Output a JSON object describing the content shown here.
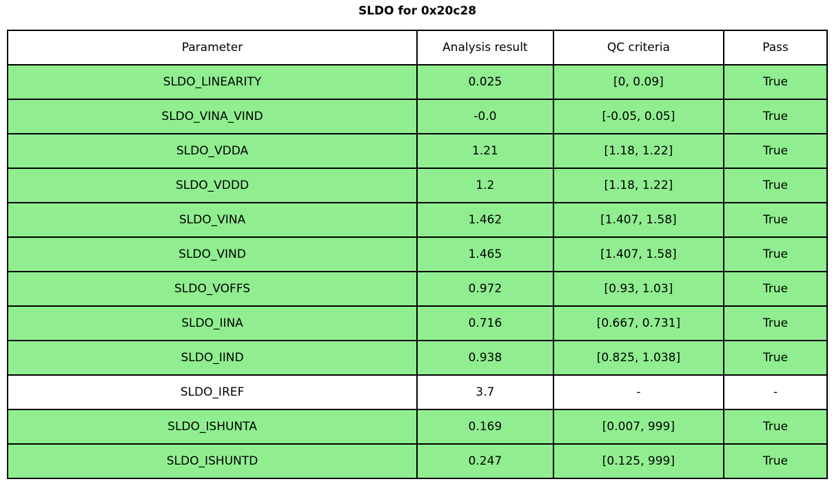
{
  "title": "SLDO for 0x20c28",
  "colors": {
    "pass_row_bg": "#90ee90",
    "neutral_row_bg": "#ffffff",
    "border": "#000000",
    "text": "#000000",
    "figure_bg": "#ffffff"
  },
  "table": {
    "columns": [
      "Parameter",
      "Analysis result",
      "QC criteria",
      "Pass"
    ],
    "rows": [
      {
        "parameter": "SLDO_LINEARITY",
        "analysis_result": "0.025",
        "qc_criteria": "[0, 0.09]",
        "pass": "True",
        "bg": "#90ee90"
      },
      {
        "parameter": "SLDO_VINA_VIND",
        "analysis_result": "-0.0",
        "qc_criteria": "[-0.05, 0.05]",
        "pass": "True",
        "bg": "#90ee90"
      },
      {
        "parameter": "SLDO_VDDA",
        "analysis_result": "1.21",
        "qc_criteria": "[1.18, 1.22]",
        "pass": "True",
        "bg": "#90ee90"
      },
      {
        "parameter": "SLDO_VDDD",
        "analysis_result": "1.2",
        "qc_criteria": "[1.18, 1.22]",
        "pass": "True",
        "bg": "#90ee90"
      },
      {
        "parameter": "SLDO_VINA",
        "analysis_result": "1.462",
        "qc_criteria": "[1.407, 1.58]",
        "pass": "True",
        "bg": "#90ee90"
      },
      {
        "parameter": "SLDO_VIND",
        "analysis_result": "1.465",
        "qc_criteria": "[1.407, 1.58]",
        "pass": "True",
        "bg": "#90ee90"
      },
      {
        "parameter": "SLDO_VOFFS",
        "analysis_result": "0.972",
        "qc_criteria": "[0.93, 1.03]",
        "pass": "True",
        "bg": "#90ee90"
      },
      {
        "parameter": "SLDO_IINA",
        "analysis_result": "0.716",
        "qc_criteria": "[0.667, 0.731]",
        "pass": "True",
        "bg": "#90ee90"
      },
      {
        "parameter": "SLDO_IIND",
        "analysis_result": "0.938",
        "qc_criteria": "[0.825, 1.038]",
        "pass": "True",
        "bg": "#90ee90"
      },
      {
        "parameter": "SLDO_IREF",
        "analysis_result": "3.7",
        "qc_criteria": "-",
        "pass": "-",
        "bg": "#ffffff"
      },
      {
        "parameter": "SLDO_ISHUNTA",
        "analysis_result": "0.169",
        "qc_criteria": "[0.007, 999]",
        "pass": "True",
        "bg": "#90ee90"
      },
      {
        "parameter": "SLDO_ISHUNTD",
        "analysis_result": "0.247",
        "qc_criteria": "[0.125, 999]",
        "pass": "True",
        "bg": "#90ee90"
      }
    ]
  },
  "chart_data": {
    "type": "table",
    "title": "SLDO for 0x20c28",
    "columns": [
      "Parameter",
      "Analysis result",
      "QC criteria",
      "Pass"
    ],
    "rows": [
      [
        "SLDO_LINEARITY",
        "0.025",
        "[0, 0.09]",
        "True"
      ],
      [
        "SLDO_VINA_VIND",
        "-0.0",
        "[-0.05, 0.05]",
        "True"
      ],
      [
        "SLDO_VDDA",
        "1.21",
        "[1.18, 1.22]",
        "True"
      ],
      [
        "SLDO_VDDD",
        "1.2",
        "[1.18, 1.22]",
        "True"
      ],
      [
        "SLDO_VINA",
        "1.462",
        "[1.407, 1.58]",
        "True"
      ],
      [
        "SLDO_VIND",
        "1.465",
        "[1.407, 1.58]",
        "True"
      ],
      [
        "SLDO_VOFFS",
        "0.972",
        "[0.93, 1.03]",
        "True"
      ],
      [
        "SLDO_IINA",
        "0.716",
        "[0.667, 0.731]",
        "True"
      ],
      [
        "SLDO_IIND",
        "0.938",
        "[0.825, 1.038]",
        "True"
      ],
      [
        "SLDO_IREF",
        "3.7",
        "-",
        "-"
      ],
      [
        "SLDO_ISHUNTA",
        "0.169",
        "[0.007, 999]",
        "True"
      ],
      [
        "SLDO_ISHUNTD",
        "0.247",
        "[0.125, 999]",
        "True"
      ]
    ],
    "layout_hints": {
      "pass_rows_highlighted_green": true,
      "neutral_rows_white": true,
      "title_position": "top-center"
    }
  }
}
